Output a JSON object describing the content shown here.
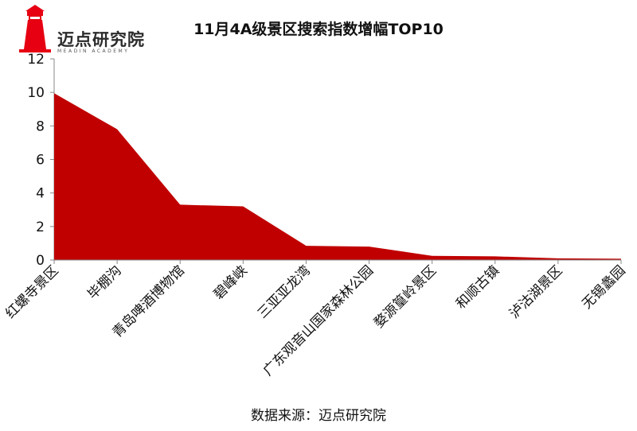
{
  "brand": {
    "name": "迈点研究院",
    "tagline": "MEADIN ACADEMY",
    "color": "#e60012"
  },
  "footer": {
    "source": "数据来源：迈点研究院"
  },
  "chart_data": {
    "type": "area",
    "title": "11月4A级景区搜索指数增幅TOP10",
    "xlabel": "",
    "ylabel": "",
    "categories": [
      "红螺寺景区",
      "毕棚沟",
      "青岛啤酒博物馆",
      "碧峰峡",
      "三亚亚龙湾",
      "广东观音山国家森林公园",
      "婺源篁岭景区",
      "和顺古镇",
      "泸沽湖景区",
      "无锡蠡园"
    ],
    "series": [
      {
        "values": [
          9.95,
          7.8,
          3.3,
          3.2,
          0.85,
          0.8,
          0.25,
          0.22,
          0.1,
          0.08
        ]
      }
    ],
    "ylim": [
      0,
      12
    ],
    "yticks": [
      0,
      2,
      4,
      6,
      8,
      10,
      12
    ],
    "color": "#c00000",
    "grid": false,
    "legend": "none"
  }
}
